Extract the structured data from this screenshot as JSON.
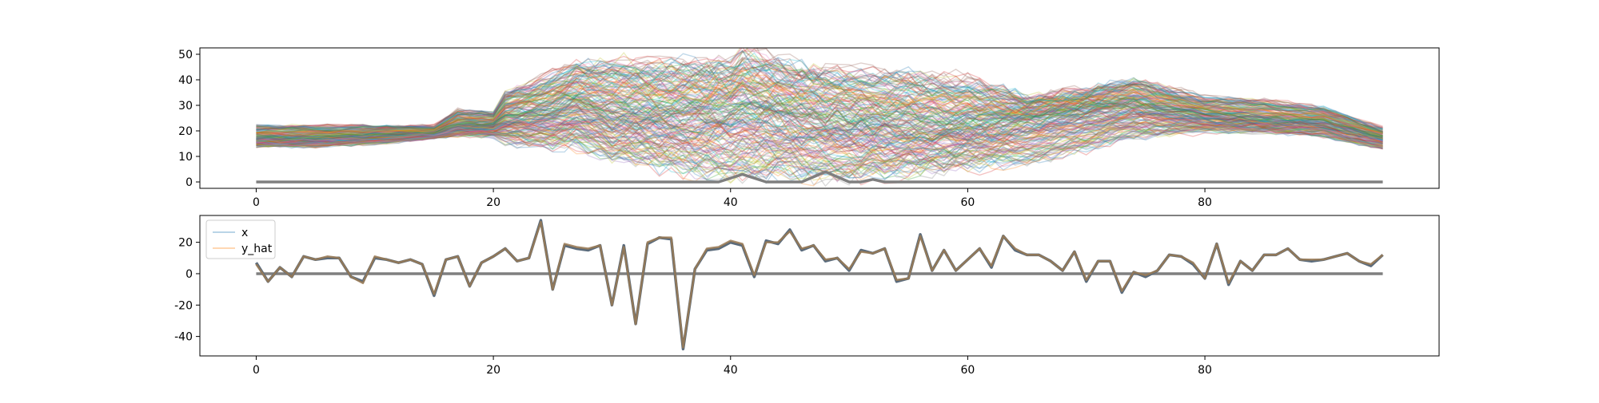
{
  "chart_data": [
    {
      "type": "line",
      "title": "",
      "xlabel": "",
      "ylabel": "",
      "xlim": [
        -4.75,
        99.75
      ],
      "ylim": [
        -2.5,
        52.5
      ],
      "x_ticks": [
        0,
        20,
        40,
        60,
        80
      ],
      "y_ticks": [
        0,
        10,
        20,
        30,
        40,
        50
      ],
      "n_points": 96,
      "grid": false,
      "legend": null,
      "description_of_series": "about 200 thin semi-transparent colored lines (default color cycle); they form a band near 14-22 for x 0-20, spread widely between ~2 and ~50 for x 22-62, and converge back to ~12-30 for x 65-95",
      "band": {
        "x": [
          0,
          5,
          10,
          15,
          17,
          20,
          21,
          25,
          27,
          30,
          35,
          40,
          41,
          45,
          50,
          55,
          60,
          65,
          70,
          74,
          80,
          85,
          90,
          95
        ],
        "low": [
          14,
          14,
          15,
          17,
          18,
          18,
          16,
          14,
          14,
          10,
          6,
          2,
          3,
          3,
          2,
          4,
          6,
          8,
          13,
          18,
          20,
          20,
          18,
          13
        ],
        "mid": [
          17,
          17,
          18,
          19,
          22,
          22,
          25,
          27,
          30,
          27,
          26,
          27,
          29,
          26,
          23,
          22,
          22,
          25,
          28,
          30,
          26,
          24,
          23,
          17
        ],
        "high": [
          22,
          22,
          22,
          22,
          28,
          27,
          35,
          42,
          46,
          47,
          46,
          47,
          51,
          46,
          43,
          42,
          40,
          33,
          36,
          40,
          33,
          32,
          29,
          21
        ]
      },
      "baseline_series": {
        "color": "#7f7f7f",
        "x": [
          0,
          39,
          41,
          43,
          46,
          48,
          50,
          51,
          52,
          53,
          95
        ],
        "y": [
          0,
          0,
          3,
          0,
          0,
          4,
          0,
          0,
          1,
          0,
          0
        ]
      },
      "colors": [
        "#1f77b4",
        "#ff7f0e",
        "#2ca02c",
        "#d62728",
        "#9467bd",
        "#8c564b",
        "#e377c2",
        "#7f7f7f",
        "#bcbd22",
        "#17becf"
      ]
    },
    {
      "type": "line",
      "title": "",
      "xlabel": "",
      "ylabel": "",
      "xlim": [
        -4.75,
        99.75
      ],
      "ylim": [
        -52.4,
        37.1
      ],
      "x_ticks": [
        0,
        20,
        40,
        60,
        80
      ],
      "y_ticks": [
        -40,
        -20,
        0,
        20
      ],
      "grid": false,
      "legend": "top-left",
      "series": [
        {
          "name": "x",
          "color": "#1f77b4",
          "x": [
            0,
            1,
            2,
            3,
            4,
            5,
            6,
            7,
            8,
            9,
            10,
            11,
            12,
            13,
            14,
            15,
            16,
            17,
            18,
            19,
            20,
            21,
            22,
            23,
            24,
            25,
            26,
            27,
            28,
            29,
            30,
            31,
            32,
            33,
            34,
            35,
            36,
            37,
            38,
            39,
            40,
            41,
            42,
            43,
            44,
            45,
            46,
            47,
            48,
            49,
            50,
            51,
            52,
            53,
            54,
            55,
            56,
            57,
            58,
            59,
            60,
            61,
            62,
            63,
            64,
            65,
            66,
            67,
            68,
            69,
            70,
            71,
            72,
            73,
            74,
            75,
            76,
            77,
            78,
            79,
            80,
            81,
            82,
            83,
            84,
            85,
            86,
            87,
            88,
            89,
            90,
            91,
            92,
            93,
            94,
            95
          ],
          "y": [
            7,
            -5,
            4,
            -2,
            11,
            9,
            10,
            10,
            -2,
            -5,
            10,
            9,
            7,
            9,
            6,
            -14,
            9,
            11,
            -8,
            7,
            11,
            16,
            8,
            10,
            34,
            -10,
            18,
            16,
            15,
            18,
            -20,
            18,
            -32,
            19,
            23,
            22,
            -48,
            3,
            15,
            16,
            20,
            18,
            -2,
            21,
            19,
            28,
            15,
            18,
            8,
            10,
            2,
            15,
            13,
            16,
            -5,
            -3,
            25,
            2,
            15,
            2,
            9,
            16,
            4,
            24,
            15,
            12,
            12,
            8,
            2,
            14,
            -5,
            8,
            8,
            -12,
            1,
            -2,
            2,
            12,
            11,
            6,
            -3,
            19,
            -7,
            8,
            2,
            12,
            12,
            16,
            9,
            8,
            9,
            11,
            13,
            8,
            5,
            12
          ]
        },
        {
          "name": "y_hat",
          "color": "#ff7f0e",
          "x": [
            0,
            1,
            2,
            3,
            4,
            5,
            6,
            7,
            8,
            9,
            10,
            11,
            12,
            13,
            14,
            15,
            16,
            17,
            18,
            19,
            20,
            21,
            22,
            23,
            24,
            25,
            26,
            27,
            28,
            29,
            30,
            31,
            32,
            33,
            34,
            35,
            36,
            37,
            38,
            39,
            40,
            41,
            42,
            43,
            44,
            45,
            46,
            47,
            48,
            49,
            50,
            51,
            52,
            53,
            54,
            55,
            56,
            57,
            58,
            59,
            60,
            61,
            62,
            63,
            64,
            65,
            66,
            67,
            68,
            69,
            70,
            71,
            72,
            73,
            74,
            75,
            76,
            77,
            78,
            79,
            80,
            81,
            82,
            83,
            84,
            85,
            86,
            87,
            88,
            89,
            90,
            91,
            92,
            93,
            94,
            95
          ],
          "y": [
            6,
            -5,
            4,
            -2,
            11,
            9,
            11,
            10,
            -2,
            -6,
            11,
            9,
            7,
            9,
            6,
            -13,
            9,
            11,
            -8,
            7,
            11,
            16,
            8,
            10,
            33,
            -10,
            19,
            17,
            16,
            18,
            -20,
            17,
            -32,
            20,
            23,
            23,
            -47,
            3,
            16,
            17,
            21,
            19,
            -1,
            20,
            20,
            27,
            16,
            18,
            9,
            10,
            3,
            14,
            13,
            16,
            -4,
            -3,
            24,
            2,
            15,
            2,
            9,
            16,
            5,
            24,
            16,
            12,
            12,
            8,
            2,
            14,
            -4,
            8,
            8,
            -11,
            1,
            -1,
            2,
            12,
            11,
            7,
            -3,
            19,
            -6,
            8,
            2,
            12,
            12,
            16,
            9,
            9,
            9,
            11,
            13,
            8,
            6,
            12
          ]
        }
      ],
      "baseline_series": {
        "color": "#7f7f7f",
        "x": [
          0,
          95
        ],
        "y": [
          0,
          0
        ]
      }
    }
  ]
}
